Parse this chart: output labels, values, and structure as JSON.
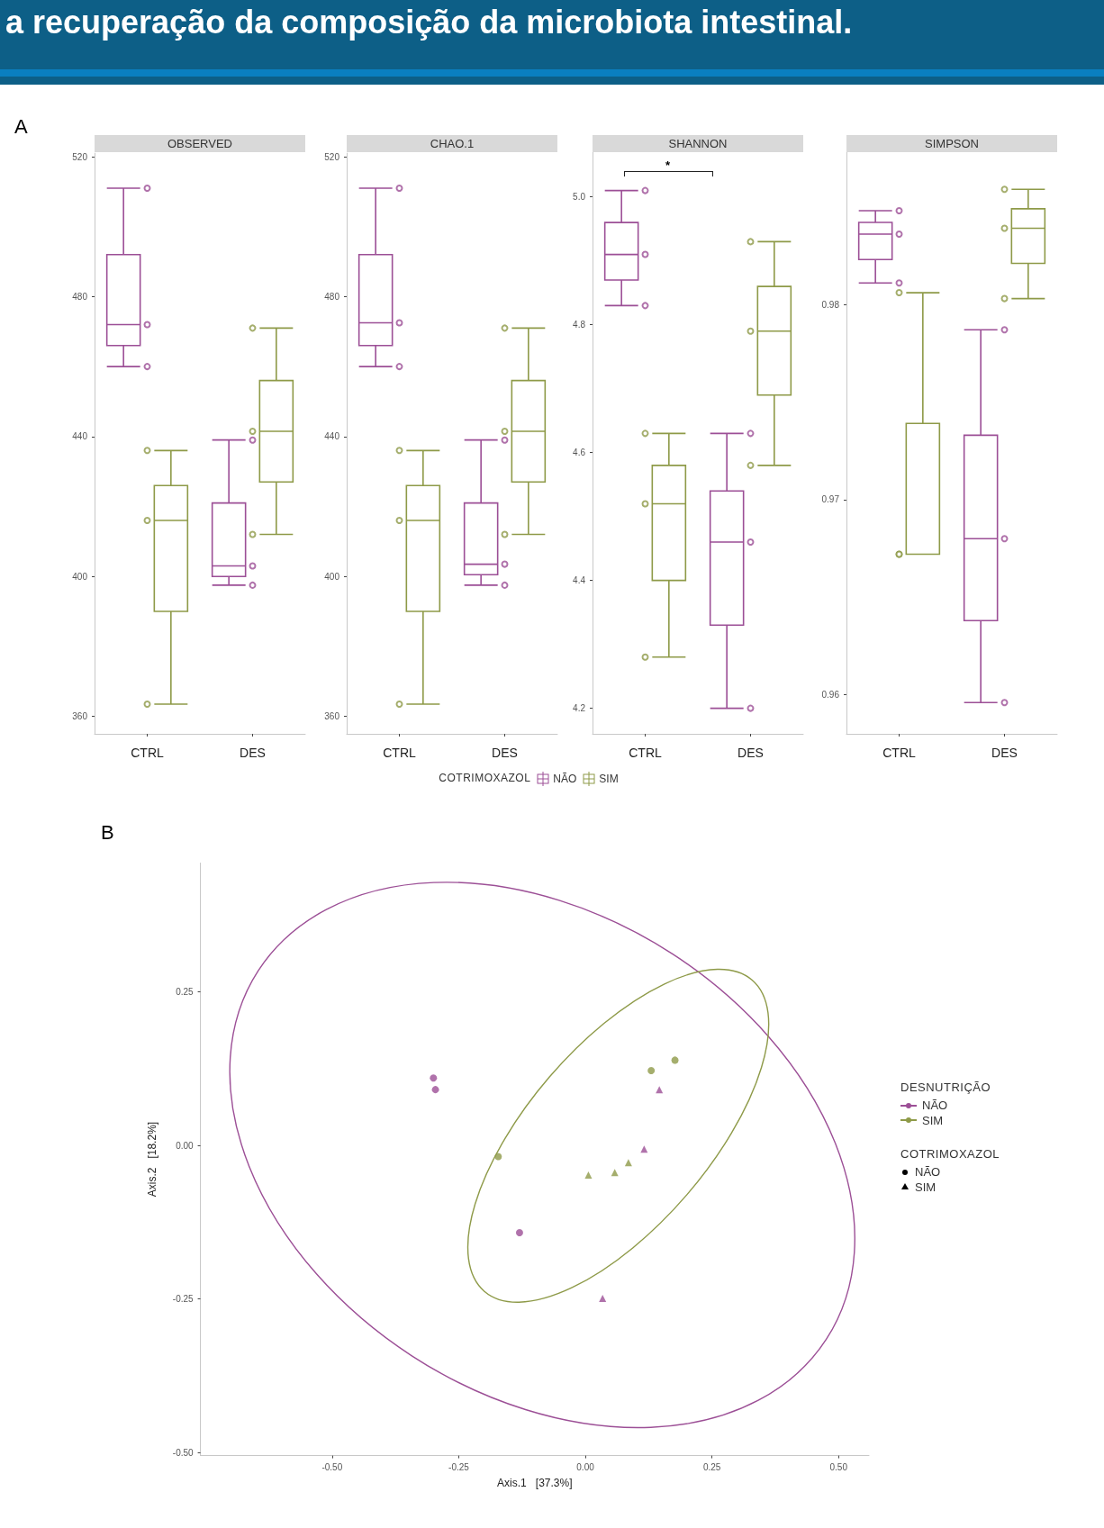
{
  "chart_data": [
    {
      "type": "box",
      "title": "OBSERVED",
      "categories": [
        "CTRL",
        "DES"
      ],
      "ylim": [
        355,
        521
      ],
      "yticks": [
        360,
        400,
        440,
        480,
        520
      ],
      "legend": "bottom",
      "legend_title": "COTRIMOXAZOL",
      "annotations": [
        "a recuperação da composição da microbiota intestinal.",
        "A"
      ],
      "series": [
        {
          "name": "NÃO",
          "color": "#9c4f96",
          "boxes": [
            {
              "low": 460,
              "q1": 466,
              "median": 472,
              "q3": 492,
              "high": 511
            },
            {
              "low": 397.5,
              "q1": 400,
              "median": 403,
              "q3": 421,
              "high": 439
            }
          ]
        },
        {
          "name": "SIM",
          "color": "#8e9a48",
          "boxes": [
            {
              "low": 363.5,
              "q1": 390,
              "median": 416,
              "q3": 426,
              "high": 436
            },
            {
              "low": 412,
              "q1": 427,
              "median": 441.5,
              "q3": 456,
              "high": 471
            }
          ]
        },
        {
          "type": "scatter",
          "color": "#9c4f96",
          "marker": "circle",
          "x": [
            "CTRL",
            "CTRL",
            "CTRL",
            "DES",
            "DES",
            "DES"
          ],
          "values": [
            511,
            472,
            460,
            439,
            403,
            397.5
          ]
        },
        {
          "type": "scatter",
          "color": "#8e9a48",
          "marker": "circle",
          "x": [
            "CTRL",
            "CTRL",
            "CTRL",
            "DES",
            "DES",
            "DES"
          ],
          "values": [
            436,
            416,
            363.5,
            471,
            441.5,
            412
          ]
        }
      ]
    },
    {
      "type": "box",
      "title": "CHAO.1",
      "categories": [
        "CTRL",
        "DES"
      ],
      "ylim": [
        355,
        521
      ],
      "yticks": [
        360,
        400,
        440,
        480,
        520
      ],
      "series": [
        {
          "color": "#9c4f96",
          "boxes": [
            {
              "low": 460,
              "q1": 466,
              "median": 472.5,
              "q3": 492,
              "high": 511
            },
            {
              "low": 397.5,
              "q1": 400.5,
              "median": 403.5,
              "q3": 421,
              "high": 439
            }
          ]
        },
        {
          "color": "#8e9a48",
          "boxes": [
            {
              "low": 363.5,
              "q1": 390,
              "median": 416,
              "q3": 426,
              "high": 436
            },
            {
              "low": 412,
              "q1": 427,
              "median": 441.5,
              "q3": 456,
              "high": 471
            }
          ]
        },
        {
          "type": "scatter",
          "color": "#9c4f96",
          "marker": "circle",
          "x": [
            "CTRL",
            "CTRL",
            "CTRL",
            "DES",
            "DES",
            "DES"
          ],
          "values": [
            511,
            472.5,
            460,
            439,
            403.5,
            397.5
          ]
        },
        {
          "type": "scatter",
          "color": "#8e9a48",
          "marker": "circle",
          "x": [
            "CTRL",
            "CTRL",
            "CTRL",
            "DES",
            "DES",
            "DES"
          ],
          "values": [
            436,
            416,
            363.5,
            471,
            441.5,
            412
          ]
        }
      ]
    },
    {
      "type": "box",
      "title": "SHANNON",
      "categories": [
        "CTRL",
        "DES"
      ],
      "ylim": [
        4.16,
        5.07
      ],
      "yticks": [
        4.2,
        4.4,
        4.6,
        4.8,
        {
          "value": 5,
          "label": "5.0"
        }
      ],
      "annotations": [
        "*"
      ],
      "series": [
        {
          "color": "#9c4f96",
          "boxes": [
            {
              "low": 4.83,
              "q1": 4.87,
              "median": 4.91,
              "q3": 4.96,
              "high": 5.01
            },
            {
              "low": 4.2,
              "q1": 4.33,
              "median": 4.46,
              "q3": 4.54,
              "high": 4.63
            }
          ]
        },
        {
          "color": "#8e9a48",
          "boxes": [
            {
              "low": 4.28,
              "q1": 4.4,
              "median": 4.52,
              "q3": 4.58,
              "high": 4.63
            },
            {
              "low": 4.58,
              "q1": 4.69,
              "median": 4.79,
              "q3": 4.86,
              "high": 4.93
            }
          ]
        },
        {
          "type": "scatter",
          "color": "#9c4f96",
          "marker": "circle",
          "x": [
            "CTRL",
            "CTRL",
            "CTRL",
            "DES",
            "DES",
            "DES"
          ],
          "values": [
            5.01,
            4.91,
            4.83,
            4.63,
            4.46,
            4.2
          ]
        },
        {
          "type": "scatter",
          "color": "#8e9a48",
          "marker": "circle",
          "x": [
            "CTRL",
            "CTRL",
            "CTRL",
            "DES",
            "DES",
            "DES"
          ],
          "values": [
            4.63,
            4.52,
            4.28,
            4.93,
            4.79,
            4.58
          ]
        }
      ]
    },
    {
      "type": "box",
      "title": "SIMPSON",
      "categories": [
        "CTRL",
        "DES"
      ],
      "ylim": [
        0.958,
        0.9878
      ],
      "yticks": [
        0.96,
        0.97,
        0.98
      ],
      "series": [
        {
          "color": "#9c4f96",
          "boxes": [
            {
              "low": 0.9811,
              "q1": 0.9823,
              "median": 0.9836,
              "q3": 0.9842,
              "high": 0.9848
            },
            {
              "low": 0.9596,
              "q1": 0.9638,
              "median": 0.968,
              "q3": 0.9733,
              "high": 0.9787
            }
          ]
        },
        {
          "color": "#8e9a48",
          "boxes": [
            {
              "low": 0.9672,
              "q1": 0.9672,
              "median": 0.9672,
              "q3": 0.9739,
              "high": 0.9806
            },
            {
              "low": 0.9803,
              "q1": 0.9821,
              "median": 0.9839,
              "q3": 0.9849,
              "high": 0.9859
            }
          ]
        },
        {
          "type": "scatter",
          "color": "#9c4f96",
          "marker": "circle",
          "x": [
            "CTRL",
            "CTRL",
            "CTRL",
            "DES",
            "DES",
            "DES"
          ],
          "values": [
            0.9848,
            0.9836,
            0.9811,
            0.9787,
            0.968,
            0.9596
          ]
        },
        {
          "type": "scatter",
          "color": "#8e9a48",
          "marker": "circle",
          "x": [
            "CTRL",
            "CTRL",
            "CTRL",
            "DES",
            "DES",
            "DES"
          ],
          "values": [
            0.9806,
            0.9672,
            0.9672,
            0.9859,
            0.9839,
            0.9803
          ]
        }
      ]
    },
    {
      "type": "scatter",
      "xlabel": "Axis.1   [37.3%]",
      "ylabel": "Axis.2   [18.2%]",
      "xlim": [
        -0.76,
        0.56
      ],
      "ylim": [
        -0.505,
        0.46
      ],
      "xticks": [
        {
          "value": -0.5,
          "label": "-0.50"
        },
        {
          "value": -0.25,
          "label": "-0.25"
        },
        {
          "value": 0,
          "label": "0.00"
        },
        {
          "value": 0.25,
          "label": "0.25"
        },
        {
          "value": 0.5,
          "label": "0.50"
        }
      ],
      "yticks": [
        {
          "value": -0.5,
          "label": "-0.50"
        },
        {
          "value": -0.25,
          "label": "-0.25"
        },
        {
          "value": 0,
          "label": "0.00"
        },
        {
          "value": 0.25,
          "label": "0.25"
        }
      ],
      "legend": "right",
      "legend_title": "DESNUTRIÇÃO",
      "annotations": [
        "B",
        "COTRIMOXAZOL",
        "NÃO",
        "SIM"
      ],
      "series": [
        {
          "name": "NÃO",
          "color": "#9c4f96",
          "marker": "circle",
          "x": [
            -0.3,
            -0.296,
            -0.13
          ],
          "values": [
            0.11,
            0.091,
            -0.142
          ]
        },
        {
          "color": "#9c4f96",
          "marker": "triangle",
          "x": [
            0.146,
            0.116,
            0.034
          ],
          "values": [
            0.091,
            -0.006,
            -0.249
          ]
        },
        {
          "name": "SIM",
          "color": "#8e9a48",
          "marker": "circle",
          "x": [
            0.177,
            0.13,
            -0.172
          ],
          "values": [
            0.139,
            0.122,
            -0.018
          ]
        },
        {
          "color": "#8e9a48",
          "marker": "triangle",
          "x": [
            0.006,
            0.058,
            0.085
          ],
          "values": [
            -0.048,
            -0.044,
            -0.028
          ]
        }
      ]
    }
  ]
}
